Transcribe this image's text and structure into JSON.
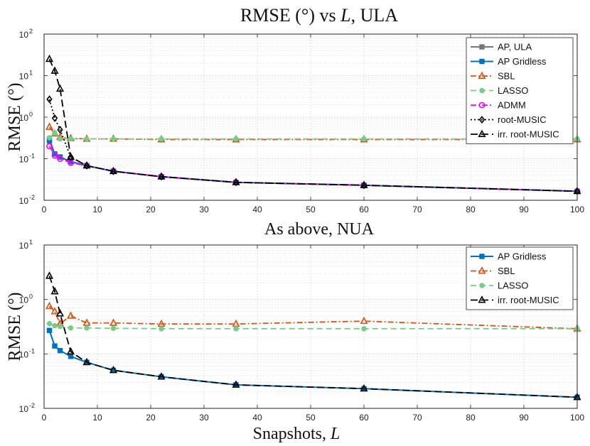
{
  "chart_data": [
    {
      "type": "line",
      "title": "RMSE (°) vs L, ULA",
      "title_parts": [
        "RMSE (°) vs ",
        "L",
        ", ULA"
      ],
      "xlabel": "",
      "ylabel": "RMSE (°)",
      "xscale": "linear",
      "yscale": "log",
      "xlim": [
        0,
        100
      ],
      "ylim": [
        0.01,
        100
      ],
      "xticks": [
        0,
        10,
        20,
        30,
        40,
        50,
        60,
        70,
        80,
        90,
        100
      ],
      "xtick_labels": [
        "0",
        "10",
        "20",
        "30",
        "40",
        "50",
        "60",
        "70",
        "80",
        "90",
        "100"
      ],
      "ytick_bases": [
        "10",
        "10",
        "10",
        "10",
        "10"
      ],
      "ytick_exponents": [
        "-2",
        "-1",
        "0",
        "1",
        "2"
      ],
      "grid": true,
      "legend_position": "top-right",
      "series": [
        {
          "name": "AP, ULA",
          "color": "#777777",
          "dash": "solid",
          "marker": "square",
          "x": [
            1,
            2,
            3,
            5,
            8,
            13,
            22,
            36,
            60,
            100
          ],
          "y": [
            0.3,
            0.13,
            0.11,
            0.085,
            0.068,
            0.05,
            0.037,
            0.027,
            0.023,
            0.0165
          ]
        },
        {
          "name": "AP Gridless",
          "color": "#0072BD",
          "dash": "solid",
          "marker": "square",
          "x": [
            1,
            2,
            3,
            5,
            8,
            13,
            22,
            36,
            60,
            100
          ],
          "y": [
            0.27,
            0.13,
            0.11,
            0.085,
            0.068,
            0.05,
            0.037,
            0.027,
            0.023,
            0.0165
          ]
        },
        {
          "name": "SBL",
          "color": "#D95319",
          "dash": "dashdot",
          "marker": "triangle",
          "x": [
            1,
            2,
            3,
            5,
            8,
            13,
            22,
            36,
            60,
            100
          ],
          "y": [
            0.58,
            0.4,
            0.33,
            0.31,
            0.3,
            0.3,
            0.29,
            0.29,
            0.29,
            0.29
          ]
        },
        {
          "name": "LASSO",
          "color": "#77CC88",
          "dash": "dash",
          "marker": "circle",
          "x": [
            1,
            2,
            3,
            5,
            8,
            13,
            22,
            36,
            60,
            100
          ],
          "y": [
            0.32,
            0.42,
            0.3,
            0.3,
            0.3,
            0.3,
            0.3,
            0.3,
            0.3,
            0.3
          ]
        },
        {
          "name": "ADMM",
          "color": "#FF00FF",
          "dash": "dashdot",
          "marker": "circle-open",
          "x": [
            1,
            2,
            3,
            5,
            8,
            13,
            22,
            36,
            60,
            100
          ],
          "y": [
            0.2,
            0.12,
            0.1,
            0.08,
            0.068,
            0.05,
            0.037,
            0.027,
            0.023,
            0.0165
          ]
        },
        {
          "name": "root-MUSIC",
          "color": "#000000",
          "dash": "dot",
          "marker": "diamond",
          "x": [
            1,
            2,
            3,
            5,
            8,
            13,
            22,
            36,
            60,
            100
          ],
          "y": [
            2.7,
            0.95,
            0.5,
            0.11,
            0.068,
            0.05,
            0.037,
            0.027,
            0.023,
            0.0165
          ]
        },
        {
          "name": "irr. root-MUSIC",
          "color": "#000000",
          "dash": "longdash",
          "marker": "triangle",
          "x": [
            1,
            2,
            3,
            5,
            8,
            13,
            22,
            36,
            60,
            100
          ],
          "y": [
            25,
            13,
            4.8,
            0.11,
            0.068,
            0.05,
            0.037,
            0.027,
            0.023,
            0.0165
          ]
        }
      ]
    },
    {
      "type": "line",
      "title": "As above, NUA",
      "title_parts": [
        "As above, NUA",
        "",
        ""
      ],
      "xlabel": "Snapshots, L",
      "xlabel_parts": [
        "Snapshots, ",
        "L"
      ],
      "ylabel": "RMSE (°)",
      "xscale": "linear",
      "yscale": "log",
      "xlim": [
        0,
        100
      ],
      "ylim": [
        0.01,
        10
      ],
      "xticks": [
        0,
        10,
        20,
        30,
        40,
        50,
        60,
        70,
        80,
        90,
        100
      ],
      "xtick_labels": [
        "0",
        "10",
        "20",
        "30",
        "40",
        "50",
        "60",
        "70",
        "80",
        "90",
        "100"
      ],
      "ytick_bases": [
        "10",
        "10",
        "10",
        "10"
      ],
      "ytick_exponents": [
        "-2",
        "-1",
        "0",
        "1"
      ],
      "grid": true,
      "legend_position": "top-right",
      "series": [
        {
          "name": "AP Gridless",
          "color": "#0072BD",
          "dash": "solid",
          "marker": "square",
          "x": [
            1,
            2,
            3,
            5,
            8,
            13,
            22,
            36,
            60,
            100
          ],
          "y": [
            0.27,
            0.14,
            0.115,
            0.09,
            0.07,
            0.05,
            0.038,
            0.027,
            0.023,
            0.016
          ]
        },
        {
          "name": "SBL",
          "color": "#D95319",
          "dash": "dashdot",
          "marker": "triangle",
          "x": [
            1,
            2,
            3,
            5,
            8,
            13,
            22,
            36,
            60,
            100
          ],
          "y": [
            0.75,
            0.6,
            0.36,
            0.5,
            0.37,
            0.37,
            0.355,
            0.355,
            0.4,
            0.29
          ]
        },
        {
          "name": "LASSO",
          "color": "#77CC88",
          "dash": "dash",
          "marker": "circle",
          "x": [
            1,
            2,
            3,
            5,
            8,
            13,
            22,
            36,
            60,
            100
          ],
          "y": [
            0.36,
            0.33,
            0.32,
            0.3,
            0.3,
            0.295,
            0.29,
            0.29,
            0.29,
            0.29
          ]
        },
        {
          "name": "irr. root-MUSIC",
          "color": "#000000",
          "dash": "longdash",
          "marker": "triangle",
          "x": [
            1,
            2,
            3,
            5,
            8,
            13,
            22,
            36,
            60,
            100
          ],
          "y": [
            2.7,
            1.4,
            0.55,
            0.11,
            0.07,
            0.05,
            0.038,
            0.027,
            0.023,
            0.016
          ]
        }
      ]
    }
  ]
}
